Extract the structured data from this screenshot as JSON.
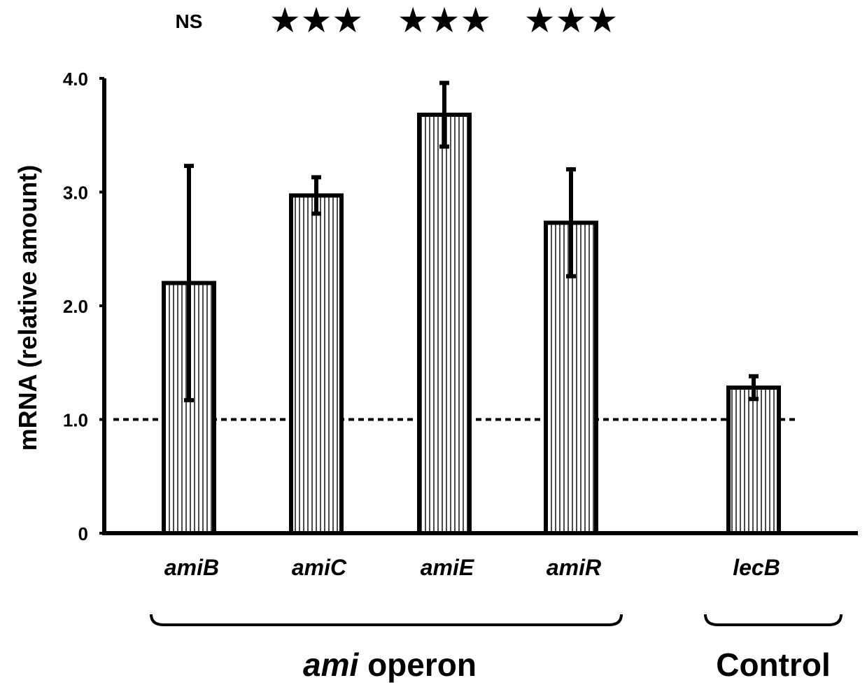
{
  "chart_data": {
    "type": "bar",
    "categories": [
      "amiB",
      "amiC",
      "amiE",
      "amiR",
      "lecB"
    ],
    "values": [
      2.2,
      2.97,
      3.68,
      2.73,
      1.28
    ],
    "error": [
      1.03,
      0.16,
      0.28,
      0.47,
      0.1
    ],
    "significance": [
      "NS",
      "★★★",
      "★★★",
      "★★★",
      ""
    ],
    "ylabel": "mRNA (relative amount)",
    "ylim": [
      0,
      4.0
    ],
    "yticks": [
      "0",
      "1.0",
      "2.0",
      "3.0",
      "4.0"
    ],
    "ytick_values": [
      0,
      1,
      2,
      3,
      4
    ],
    "reference_line": 1.0,
    "groups": [
      {
        "label_italic": "ami",
        "label_rest": " operon",
        "categories": [
          "amiB",
          "amiC",
          "amiE",
          "amiR"
        ]
      },
      {
        "label_italic": "",
        "label_rest": "Control",
        "categories": [
          "lecB"
        ]
      }
    ],
    "grid": false,
    "bar_fill": "vertical-stripes",
    "colors": {
      "bar_edge": "#000000",
      "stripe": "#000000",
      "background": "#ffffff"
    }
  }
}
